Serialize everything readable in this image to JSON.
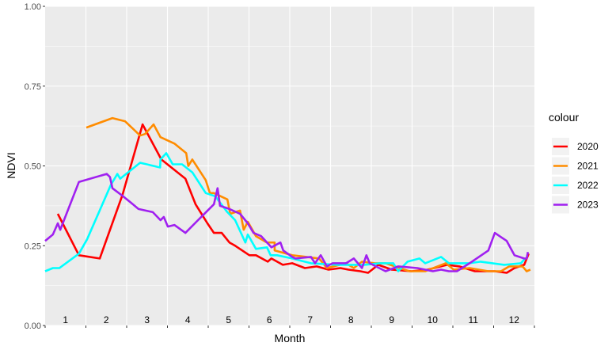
{
  "chart_data": {
    "type": "line",
    "title": "",
    "xlabel": "Month",
    "ylabel": "NDVI",
    "xlim": [
      0,
      12
    ],
    "ylim": [
      0,
      1
    ],
    "yticks": [
      0,
      0.25,
      0.5,
      0.75,
      1
    ],
    "ytick_labels": [
      "0.00",
      "0.25",
      "0.50",
      "0.75",
      "1.00"
    ],
    "month_labels": [
      "1",
      "2",
      "3",
      "4",
      "5",
      "6",
      "7",
      "8",
      "9",
      "10",
      "11",
      "12"
    ],
    "grid": true,
    "legend": {
      "title": "colour",
      "placement": "right"
    },
    "series": [
      {
        "name": "2020",
        "color": "#FF0000",
        "points": [
          [
            0.31,
            0.35
          ],
          [
            0.83,
            0.22
          ],
          [
            1.34,
            0.21
          ],
          [
            1.9,
            0.41
          ],
          [
            2.39,
            0.63
          ],
          [
            2.85,
            0.52
          ],
          [
            3.44,
            0.46
          ],
          [
            3.69,
            0.38
          ],
          [
            3.98,
            0.32
          ],
          [
            4.14,
            0.29
          ],
          [
            4.33,
            0.29
          ],
          [
            4.52,
            0.26
          ],
          [
            4.66,
            0.25
          ],
          [
            5.01,
            0.22
          ],
          [
            5.17,
            0.22
          ],
          [
            5.46,
            0.2
          ],
          [
            5.55,
            0.21
          ],
          [
            5.83,
            0.19
          ],
          [
            6.06,
            0.195
          ],
          [
            6.37,
            0.18
          ],
          [
            6.66,
            0.185
          ],
          [
            6.95,
            0.175
          ],
          [
            7.24,
            0.18
          ],
          [
            7.44,
            0.175
          ],
          [
            7.73,
            0.17
          ],
          [
            7.92,
            0.165
          ],
          [
            8.17,
            0.19
          ],
          [
            8.5,
            0.175
          ],
          [
            8.99,
            0.17
          ],
          [
            9.38,
            0.175
          ],
          [
            9.86,
            0.19
          ],
          [
            10.16,
            0.185
          ],
          [
            10.54,
            0.17
          ],
          [
            11.03,
            0.17
          ],
          [
            11.32,
            0.165
          ],
          [
            11.51,
            0.18
          ],
          [
            11.75,
            0.19
          ],
          [
            11.86,
            0.225
          ]
        ]
      },
      {
        "name": "2021",
        "color": "#FF8C00",
        "points": [
          [
            1.01,
            0.62
          ],
          [
            1.65,
            0.65
          ],
          [
            1.96,
            0.64
          ],
          [
            2.33,
            0.595
          ],
          [
            2.45,
            0.6
          ],
          [
            2.66,
            0.63
          ],
          [
            2.83,
            0.59
          ],
          [
            3.17,
            0.57
          ],
          [
            3.46,
            0.54
          ],
          [
            3.51,
            0.5
          ],
          [
            3.61,
            0.52
          ],
          [
            3.94,
            0.455
          ],
          [
            4.04,
            0.415
          ],
          [
            4.14,
            0.415
          ],
          [
            4.47,
            0.395
          ],
          [
            4.54,
            0.35
          ],
          [
            4.78,
            0.36
          ],
          [
            4.87,
            0.3
          ],
          [
            4.97,
            0.325
          ],
          [
            5.17,
            0.28
          ],
          [
            5.44,
            0.26
          ],
          [
            5.63,
            0.26
          ],
          [
            5.63,
            0.235
          ],
          [
            6.06,
            0.22
          ],
          [
            6.72,
            0.21
          ],
          [
            6.91,
            0.18
          ],
          [
            7.38,
            0.195
          ],
          [
            7.57,
            0.18
          ],
          [
            7.77,
            0.2
          ],
          [
            8.08,
            0.195
          ],
          [
            8.35,
            0.195
          ],
          [
            8.93,
            0.17
          ],
          [
            9.32,
            0.17
          ],
          [
            9.83,
            0.195
          ],
          [
            10.02,
            0.175
          ],
          [
            10.41,
            0.18
          ],
          [
            10.87,
            0.17
          ],
          [
            11.18,
            0.17
          ],
          [
            11.38,
            0.185
          ],
          [
            11.71,
            0.185
          ],
          [
            11.81,
            0.17
          ],
          [
            11.9,
            0.175
          ]
        ]
      },
      {
        "name": "2022",
        "color": "#00FFFF",
        "points": [
          [
            0.0,
            0.17
          ],
          [
            0.19,
            0.18
          ],
          [
            0.35,
            0.18
          ],
          [
            0.83,
            0.225
          ],
          [
            1.03,
            0.27
          ],
          [
            1.61,
            0.44
          ],
          [
            1.77,
            0.475
          ],
          [
            1.84,
            0.46
          ],
          [
            2.33,
            0.51
          ],
          [
            2.82,
            0.495
          ],
          [
            2.83,
            0.52
          ],
          [
            2.97,
            0.54
          ],
          [
            3.13,
            0.505
          ],
          [
            3.36,
            0.505
          ],
          [
            3.61,
            0.48
          ],
          [
            3.94,
            0.415
          ],
          [
            4.17,
            0.405
          ],
          [
            4.47,
            0.355
          ],
          [
            4.66,
            0.33
          ],
          [
            4.91,
            0.26
          ],
          [
            4.97,
            0.285
          ],
          [
            5.17,
            0.24
          ],
          [
            5.44,
            0.245
          ],
          [
            5.53,
            0.22
          ],
          [
            5.69,
            0.22
          ],
          [
            6.06,
            0.21
          ],
          [
            6.52,
            0.195
          ],
          [
            7.18,
            0.19
          ],
          [
            7.83,
            0.19
          ],
          [
            8.21,
            0.195
          ],
          [
            8.54,
            0.195
          ],
          [
            8.66,
            0.17
          ],
          [
            8.89,
            0.2
          ],
          [
            9.18,
            0.21
          ],
          [
            9.32,
            0.195
          ],
          [
            9.71,
            0.215
          ],
          [
            9.9,
            0.195
          ],
          [
            10.41,
            0.195
          ],
          [
            10.68,
            0.2
          ],
          [
            11.26,
            0.19
          ],
          [
            11.67,
            0.195
          ],
          [
            11.77,
            0.21
          ]
        ]
      },
      {
        "name": "2023",
        "color": "#A020F0",
        "points": [
          [
            0,
            0.265
          ],
          [
            0.19,
            0.285
          ],
          [
            0.31,
            0.32
          ],
          [
            0.37,
            0.3
          ],
          [
            0.83,
            0.45
          ],
          [
            1.51,
            0.475
          ],
          [
            1.59,
            0.465
          ],
          [
            1.65,
            0.43
          ],
          [
            1.86,
            0.41
          ],
          [
            2.1,
            0.385
          ],
          [
            2.29,
            0.365
          ],
          [
            2.64,
            0.355
          ],
          [
            2.83,
            0.33
          ],
          [
            2.91,
            0.34
          ],
          [
            3.01,
            0.31
          ],
          [
            3.17,
            0.315
          ],
          [
            3.44,
            0.29
          ],
          [
            3.75,
            0.33
          ],
          [
            4.14,
            0.38
          ],
          [
            4.23,
            0.43
          ],
          [
            4.29,
            0.375
          ],
          [
            4.52,
            0.365
          ],
          [
            4.78,
            0.35
          ],
          [
            4.97,
            0.32
          ],
          [
            5.11,
            0.29
          ],
          [
            5.3,
            0.28
          ],
          [
            5.55,
            0.245
          ],
          [
            5.77,
            0.26
          ],
          [
            5.84,
            0.235
          ],
          [
            6.06,
            0.215
          ],
          [
            6.14,
            0.21
          ],
          [
            6.52,
            0.215
          ],
          [
            6.62,
            0.195
          ],
          [
            6.76,
            0.22
          ],
          [
            6.91,
            0.185
          ],
          [
            7.05,
            0.195
          ],
          [
            7.38,
            0.195
          ],
          [
            7.57,
            0.21
          ],
          [
            7.77,
            0.18
          ],
          [
            7.88,
            0.22
          ],
          [
            7.96,
            0.195
          ],
          [
            8.35,
            0.17
          ],
          [
            8.66,
            0.185
          ],
          [
            9.13,
            0.18
          ],
          [
            9.51,
            0.17
          ],
          [
            9.71,
            0.175
          ],
          [
            9.9,
            0.17
          ],
          [
            10.1,
            0.17
          ],
          [
            10.41,
            0.195
          ],
          [
            10.87,
            0.235
          ],
          [
            11.03,
            0.29
          ],
          [
            11.32,
            0.265
          ],
          [
            11.51,
            0.22
          ],
          [
            11.75,
            0.21
          ],
          [
            11.81,
            0.21
          ],
          [
            11.84,
            0.23
          ]
        ]
      }
    ]
  }
}
